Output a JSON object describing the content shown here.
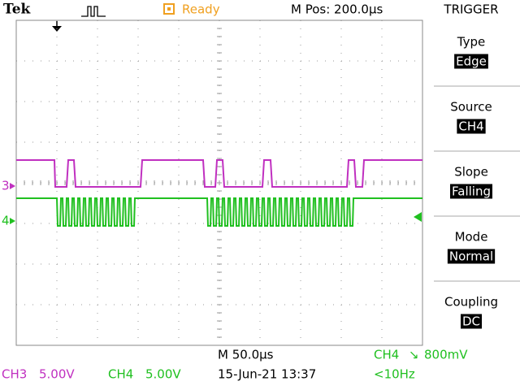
{
  "header": {
    "brand": "Tek",
    "status": "Ready",
    "position": "M Pos: 200.0µs"
  },
  "menu": {
    "title": "TRIGGER",
    "items": [
      {
        "label": "Type",
        "value": "Edge"
      },
      {
        "label": "Source",
        "value": "CH4"
      },
      {
        "label": "Slope",
        "value": "Falling"
      },
      {
        "label": "Mode",
        "value": "Normal"
      },
      {
        "label": "Coupling",
        "value": "DC"
      }
    ]
  },
  "markers": {
    "ch3": "3",
    "ch4": "4"
  },
  "footer": {
    "ch3": {
      "name": "CH3",
      "scale": "5.00V"
    },
    "ch4": {
      "name": "CH4",
      "scale": "5.00V"
    },
    "timebase": "M 50.0µs",
    "date": "15-Jun-21 13:37",
    "trigger": {
      "source": "CH4",
      "slope": "↘",
      "level": "800mV"
    },
    "frequency": "<10Hz"
  }
}
